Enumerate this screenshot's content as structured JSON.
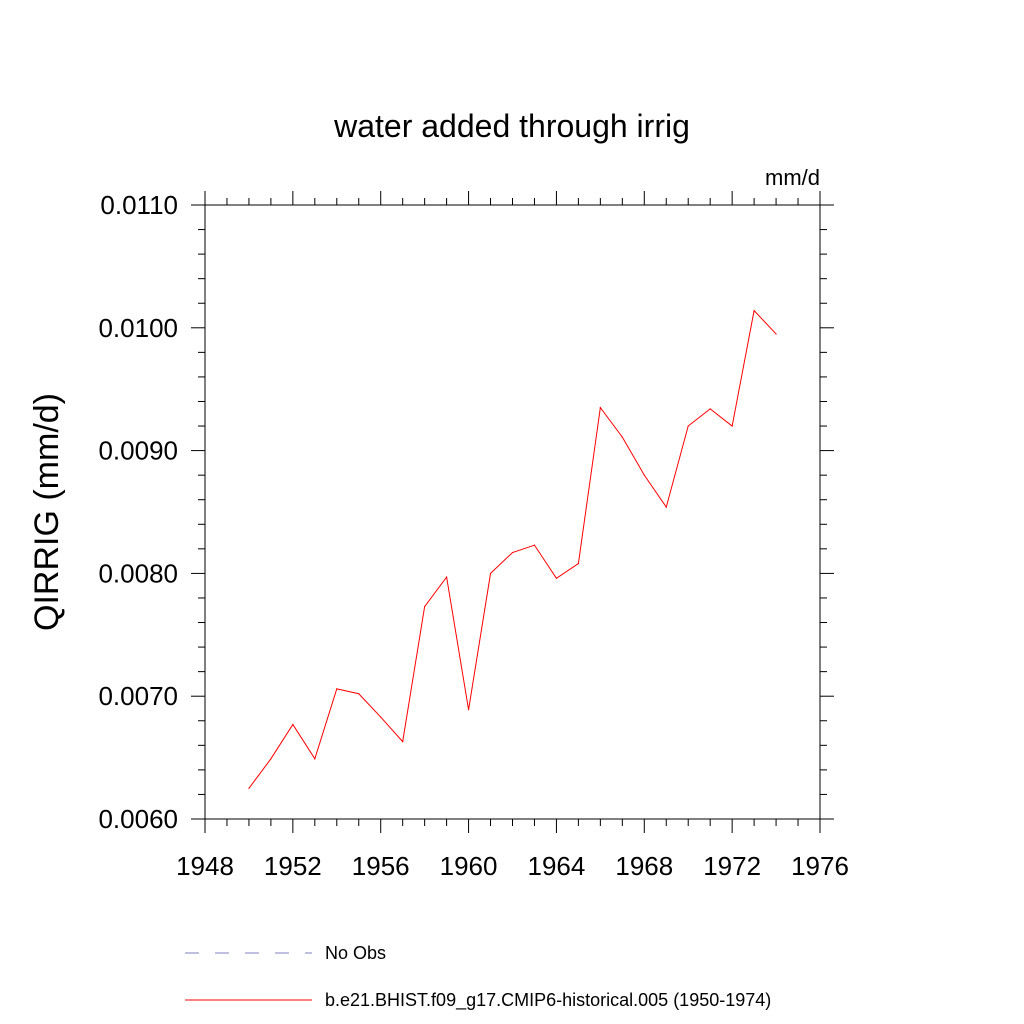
{
  "chart_data": {
    "type": "line",
    "title": "water added through irrig",
    "units": "mm/d",
    "ylabel": "QIRRIG  (mm/d)",
    "xlabel": "",
    "xlim": [
      1948,
      1976
    ],
    "ylim": [
      0.006,
      0.011
    ],
    "xticks": [
      1948,
      1952,
      1956,
      1960,
      1964,
      1968,
      1972,
      1976
    ],
    "xtick_labels": [
      "1948",
      "1952",
      "1956",
      "1960",
      "1964",
      "1968",
      "1972",
      "1976"
    ],
    "yticks": [
      0.006,
      0.007,
      0.008,
      0.009,
      0.01,
      0.011
    ],
    "ytick_labels": [
      "0.0060",
      "0.0070",
      "0.0080",
      "0.0090",
      "0.0100",
      "0.0110"
    ],
    "grid": false,
    "legend_position": "bottom",
    "series": [
      {
        "name": "No Obs",
        "color": "#8080c0",
        "style": "dashed",
        "x": [],
        "values": []
      },
      {
        "name": "b.e21.BHIST.f09_g17.CMIP6-historical.005 (1950-1974)",
        "color": "#ff0000",
        "style": "solid",
        "x": [
          1950,
          1951,
          1952,
          1953,
          1954,
          1955,
          1956,
          1957,
          1958,
          1959,
          1960,
          1961,
          1962,
          1963,
          1964,
          1965,
          1966,
          1967,
          1968,
          1969,
          1970,
          1971,
          1972,
          1973,
          1974
        ],
        "values": [
          0.00625,
          0.00649,
          0.00677,
          0.00649,
          0.00706,
          0.00702,
          0.00683,
          0.00663,
          0.00773,
          0.00797,
          0.00689,
          0.008,
          0.00817,
          0.00823,
          0.00796,
          0.00808,
          0.00935,
          0.00911,
          0.0088,
          0.00854,
          0.0092,
          0.00934,
          0.0092,
          0.01014,
          0.00995
        ]
      }
    ]
  }
}
